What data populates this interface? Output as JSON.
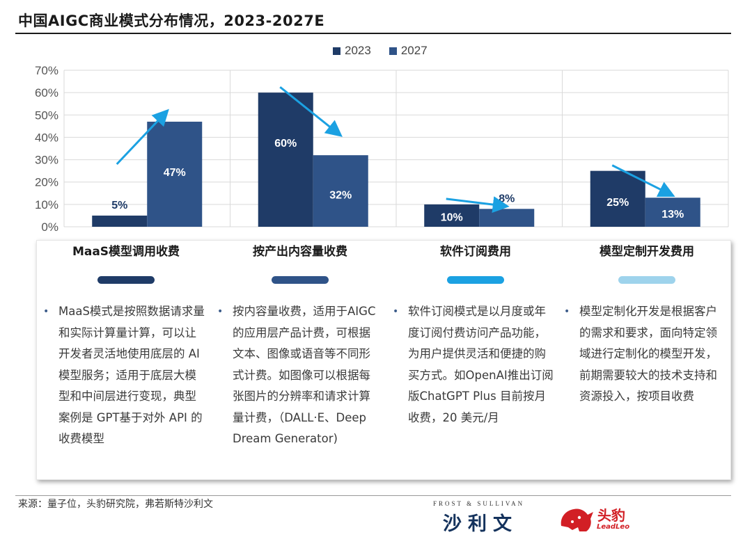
{
  "title": "中国AIGC商业模式分布情况，2023-2027E",
  "colors": {
    "series_2023": "#1f3b67",
    "series_2027": "#2f5388",
    "arrow": "#1ba1e2",
    "grid": "#d9d9d9",
    "pill_colors": [
      "#1f3b67",
      "#2f5388",
      "#1ba1e2",
      "#9ed3ec"
    ]
  },
  "chart_data": {
    "type": "bar",
    "categories": [
      "MaaS模型调用收费",
      "按产出内容量收费",
      "软件订阅费用",
      "模型定制开发费用"
    ],
    "series": [
      {
        "name": "2023",
        "values": [
          5,
          60,
          10,
          25
        ],
        "labels": [
          "5%",
          "60%",
          "10%",
          "25%"
        ]
      },
      {
        "name": "2027",
        "values": [
          47,
          32,
          8,
          13
        ],
        "labels": [
          "47%",
          "32%",
          "8%",
          "13%"
        ]
      }
    ],
    "y_ticks": [
      "0%",
      "10%",
      "20%",
      "30%",
      "40%",
      "50%",
      "60%",
      "70%"
    ],
    "ylim": [
      0,
      70
    ],
    "trend_arrows": [
      "up",
      "down",
      "down",
      "down"
    ],
    "legend_position": "top"
  },
  "columns": [
    {
      "heading": "MaaS模型调用收费",
      "description": "MaaS模式是按照数据请求量和实际计算量计算，可以让开发者灵活地使用底层的 AI 模型服务；适用于底层大模型和中间层进行变现，典型案例是 GPT基于对外 API 的收费模型"
    },
    {
      "heading": "按产出内容量收费",
      "description": "按内容量收费，适用于AIGC的应用层产品计费，可根据文本、图像或语音等不同形式计费。如图像可以根据每张图片的分辨率和请求计算量计费，（DALL·E、Deep Dream Generator)"
    },
    {
      "heading": "软件订阅费用",
      "description": "软件订阅模式是以月度或年度订阅付费访问产品功能，为用户提供灵活和便捷的购买方式。如OpenAI推出订阅版ChatGPT Plus 目前按月收费，20 美元/月"
    },
    {
      "heading": "模型定制开发费用",
      "description": "模型定制化开发是根据客户的需求和要求，面向特定领域进行定制化的模型开发，前期需要较大的技术支持和资源投入，按项目收费"
    }
  ],
  "footer": {
    "source": "来源：量子位，头豹研究院，弗若斯特沙利文",
    "frost_top": "FROST & SULLIVAN",
    "frost_cn": "沙利文",
    "leo_cn": "头豹",
    "leo_en": "LeadLeo"
  }
}
